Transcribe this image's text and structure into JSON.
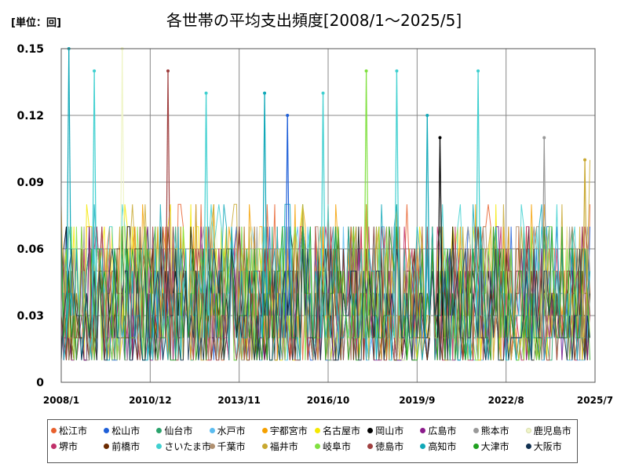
{
  "unit_label": "[単位：回]",
  "chart_data": {
    "type": "line",
    "title": "各世帯の平均支出頻度[2008/1～2025/5]",
    "xlabel": "",
    "ylabel": "",
    "ylim": [
      0,
      0.15
    ],
    "y_ticks": [
      "0",
      "0.03",
      "0.06",
      "0.09",
      "0.12",
      "0.15"
    ],
    "x_ticks": [
      "2008/1",
      "2010/12",
      "2013/11",
      "2016/10",
      "2019/9",
      "2022/8",
      "2025/7"
    ],
    "x_start": "2008/1",
    "x_end": "2025/7",
    "grid": true,
    "legend_position": "bottom",
    "peak_values_read": [
      {
        "name": "高知市",
        "date": "2008/4",
        "value": 0.15
      },
      {
        "name": "さいたま市",
        "date": "2009/2",
        "value": 0.14
      },
      {
        "name": "鹿児島市",
        "date": "2010/1",
        "value": 0.15
      },
      {
        "name": "徳島市",
        "date": "2011/7",
        "value": 0.14
      },
      {
        "name": "さいたま市",
        "date": "2012/10",
        "value": 0.13
      },
      {
        "name": "高知市",
        "date": "2014/9",
        "value": 0.13
      },
      {
        "name": "松山市",
        "date": "2015/6",
        "value": 0.12
      },
      {
        "name": "さいたま市",
        "date": "2016/8",
        "value": 0.13
      },
      {
        "name": "岐阜市",
        "date": "2018/1",
        "value": 0.14
      },
      {
        "name": "さいたま市",
        "date": "2019/1",
        "value": 0.14
      },
      {
        "name": "岡山市",
        "date": "2020/6",
        "value": 0.11
      },
      {
        "name": "高知市",
        "date": "2020/1",
        "value": 0.12
      },
      {
        "name": "さいたま市",
        "date": "2021/9",
        "value": 0.14
      },
      {
        "name": "熊本市",
        "date": "2023/11",
        "value": 0.11
      },
      {
        "name": "福井市",
        "date": "2025/3",
        "value": 0.1
      }
    ],
    "series": [
      {
        "name": "松江市",
        "color": "#e8602c",
        "typical_range": [
          0.01,
          0.08
        ],
        "last_value": 0.08
      },
      {
        "name": "松山市",
        "color": "#1e5fd8",
        "typical_range": [
          0.01,
          0.07
        ],
        "last_value": 0.07
      },
      {
        "name": "仙台市",
        "color": "#2aa36c",
        "typical_range": [
          0.01,
          0.07
        ],
        "last_value": 0.05
      },
      {
        "name": "水戸市",
        "color": "#5bbcf0",
        "typical_range": [
          0.01,
          0.07
        ],
        "last_value": 0.05
      },
      {
        "name": "宇都宮市",
        "color": "#f5a000",
        "typical_range": [
          0.01,
          0.08
        ],
        "last_value": 0.04
      },
      {
        "name": "名古屋市",
        "color": "#f5e800",
        "typical_range": [
          0.01,
          0.08
        ],
        "last_value": 0.03
      },
      {
        "name": "岡山市",
        "color": "#000000",
        "typical_range": [
          0.01,
          0.07
        ],
        "last_value": 0.04
      },
      {
        "name": "広島市",
        "color": "#8b1a8b",
        "typical_range": [
          0.01,
          0.07
        ],
        "last_value": 0.03
      },
      {
        "name": "熊本市",
        "color": "#999999",
        "typical_range": [
          0.01,
          0.07
        ],
        "last_value": 0.05
      },
      {
        "name": "鹿児島市",
        "color": "#f0f5c8",
        "typical_range": [
          0.01,
          0.07
        ],
        "last_value": 0.02
      },
      {
        "name": "堺市",
        "color": "#c0306a",
        "typical_range": [
          0.01,
          0.07
        ],
        "last_value": 0.03
      },
      {
        "name": "前橋市",
        "color": "#6b2a00",
        "typical_range": [
          0.01,
          0.07
        ],
        "last_value": 0.04
      },
      {
        "name": "さいたま市",
        "color": "#40d0d0",
        "typical_range": [
          0.01,
          0.08
        ],
        "last_value": 0.03
      },
      {
        "name": "千葉市",
        "color": "#b09070",
        "typical_range": [
          0.01,
          0.07
        ],
        "last_value": 0.03
      },
      {
        "name": "福井市",
        "color": "#c8a830",
        "typical_range": [
          0.01,
          0.08
        ],
        "last_value": 0.1
      },
      {
        "name": "岐阜市",
        "color": "#80e040",
        "typical_range": [
          0.01,
          0.07
        ],
        "last_value": 0.02
      },
      {
        "name": "徳島市",
        "color": "#a04040",
        "typical_range": [
          0.01,
          0.07
        ],
        "last_value": 0.03
      },
      {
        "name": "高知市",
        "color": "#10a8b8",
        "typical_range": [
          0.01,
          0.08
        ],
        "last_value": 0.05
      },
      {
        "name": "大津市",
        "color": "#20a020",
        "typical_range": [
          0.01,
          0.07
        ],
        "last_value": 0.01
      },
      {
        "name": "大阪市",
        "color": "#103050",
        "typical_range": [
          0.01,
          0.06
        ],
        "last_value": 0.02
      }
    ]
  }
}
